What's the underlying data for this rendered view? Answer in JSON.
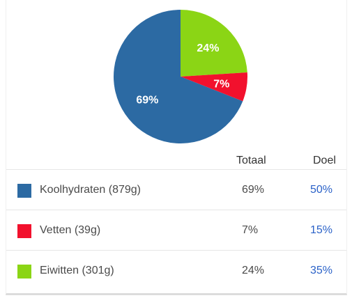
{
  "chart_data": {
    "type": "pie",
    "slices": [
      {
        "label": "Koolhydraten",
        "value": 69,
        "label_text": "69%",
        "color": "#2c6aa3"
      },
      {
        "label": "Eiwitten",
        "value": 24,
        "label_text": "24%",
        "color": "#8bd515"
      },
      {
        "label": "Vetten",
        "value": 7,
        "label_text": "7%",
        "color": "#f2112d"
      }
    ]
  },
  "table": {
    "headers": {
      "total": "Totaal",
      "goal": "Doel"
    },
    "rows": [
      {
        "name": "Koolhydraten (879g)",
        "total": "69%",
        "goal": "50%",
        "color": "#2c6aa3"
      },
      {
        "name": "Vetten (39g)",
        "total": "7%",
        "goal": "15%",
        "color": "#f2112d"
      },
      {
        "name": "Eiwitten (301g)",
        "total": "24%",
        "goal": "35%",
        "color": "#8bd515"
      }
    ]
  }
}
